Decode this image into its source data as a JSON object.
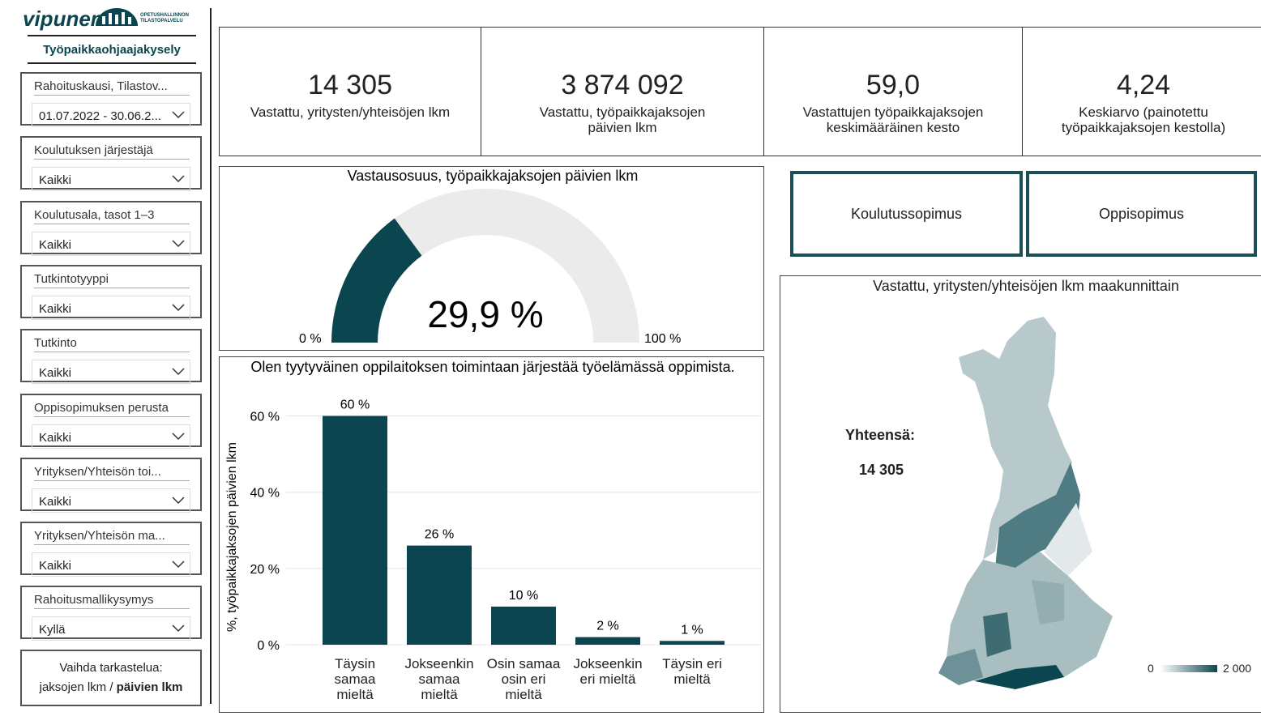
{
  "header": {
    "logo": "vipunen",
    "logo_sub": [
      "OPETUSHALLINNON",
      "TILASTOPALVELU"
    ],
    "title": "Työpaikkaohjaajakysely"
  },
  "filters": [
    {
      "label": "Rahoituskausi, Tilastov...",
      "value": "01.07.2022 - 30.06.2..."
    },
    {
      "label": "Koulutuksen järjestäjä",
      "value": "Kaikki"
    },
    {
      "label": "Koulutusala, tasot 1–3",
      "value": "Kaikki"
    },
    {
      "label": "Tutkintotyyppi",
      "value": "Kaikki"
    },
    {
      "label": "Tutkinto",
      "value": "Kaikki"
    },
    {
      "label": "Oppisopimuksen perusta",
      "value": "Kaikki"
    },
    {
      "label": "Yrityksen/Yhteisön toi...",
      "value": "Kaikki"
    },
    {
      "label": "Yrityksen/Yhteisön ma...",
      "value": "Kaikki"
    },
    {
      "label": "Rahoitusmallikysymys",
      "value": "Kyllä"
    }
  ],
  "toggle": {
    "line1": "Vaihda tarkastelua:",
    "line2": "jaksojen lkm / ",
    "line2_bold": "päivien lkm"
  },
  "kpis": [
    {
      "value": "14 305",
      "label": "Vastattu, yritysten/yhteisöjen lkm"
    },
    {
      "value": "3 874 092",
      "label": "Vastattu, työpaikkajaksojen päivien lkm"
    },
    {
      "value": "59,0",
      "label": "Vastattujen työpaikkajaksojen keskimääräinen kesto"
    },
    {
      "value": "4,24",
      "label": "Keskiarvo (painotettu työpaikkajaksojen kestolla)"
    }
  ],
  "gauge": {
    "title": "Vastausosuus, työpaikkajaksojen päivien lkm",
    "value": 29.9,
    "value_label": "29,9 %",
    "min": {
      "value": 0,
      "label": "0 %"
    },
    "max": {
      "value": 100,
      "label": "100 %"
    },
    "color": "#0b4650",
    "track_color": "#ebebeb"
  },
  "buttons": [
    "Koulutussopimus",
    "Oppisopimus"
  ],
  "map": {
    "title": "Vastattu, yritysten/yhteisöjen lkm maakunnittain",
    "total_label": "Yhteensä:",
    "total": "14 305",
    "legend_min": "0",
    "legend_max": "2 000"
  },
  "chart_data": {
    "type": "bar",
    "title": "Olen tyytyväinen oppilaitoksen toimintaan järjestää työelämässä oppimista.",
    "y_label": "%, työpaikkajaksojen päivien lkm",
    "categories": [
      "Täysin samaa mieltä",
      "Jokseenkin samaa mieltä",
      "Osin samaa osin eri mieltä",
      "Jokseenkin eri mieltä",
      "Täysin eri mieltä"
    ],
    "values": [
      60,
      26,
      10,
      2,
      1
    ],
    "value_labels": [
      "60 %",
      "26 %",
      "10 %",
      "2 %",
      "1 %"
    ],
    "color": "#0b4650",
    "ylim": [
      0,
      65
    ],
    "yticks": [
      {
        "value": 0,
        "label": "0 %"
      },
      {
        "value": 20,
        "label": "20 %"
      },
      {
        "value": 40,
        "label": "40 %"
      },
      {
        "value": 60,
        "label": "60 %"
      }
    ],
    "grid": true
  }
}
